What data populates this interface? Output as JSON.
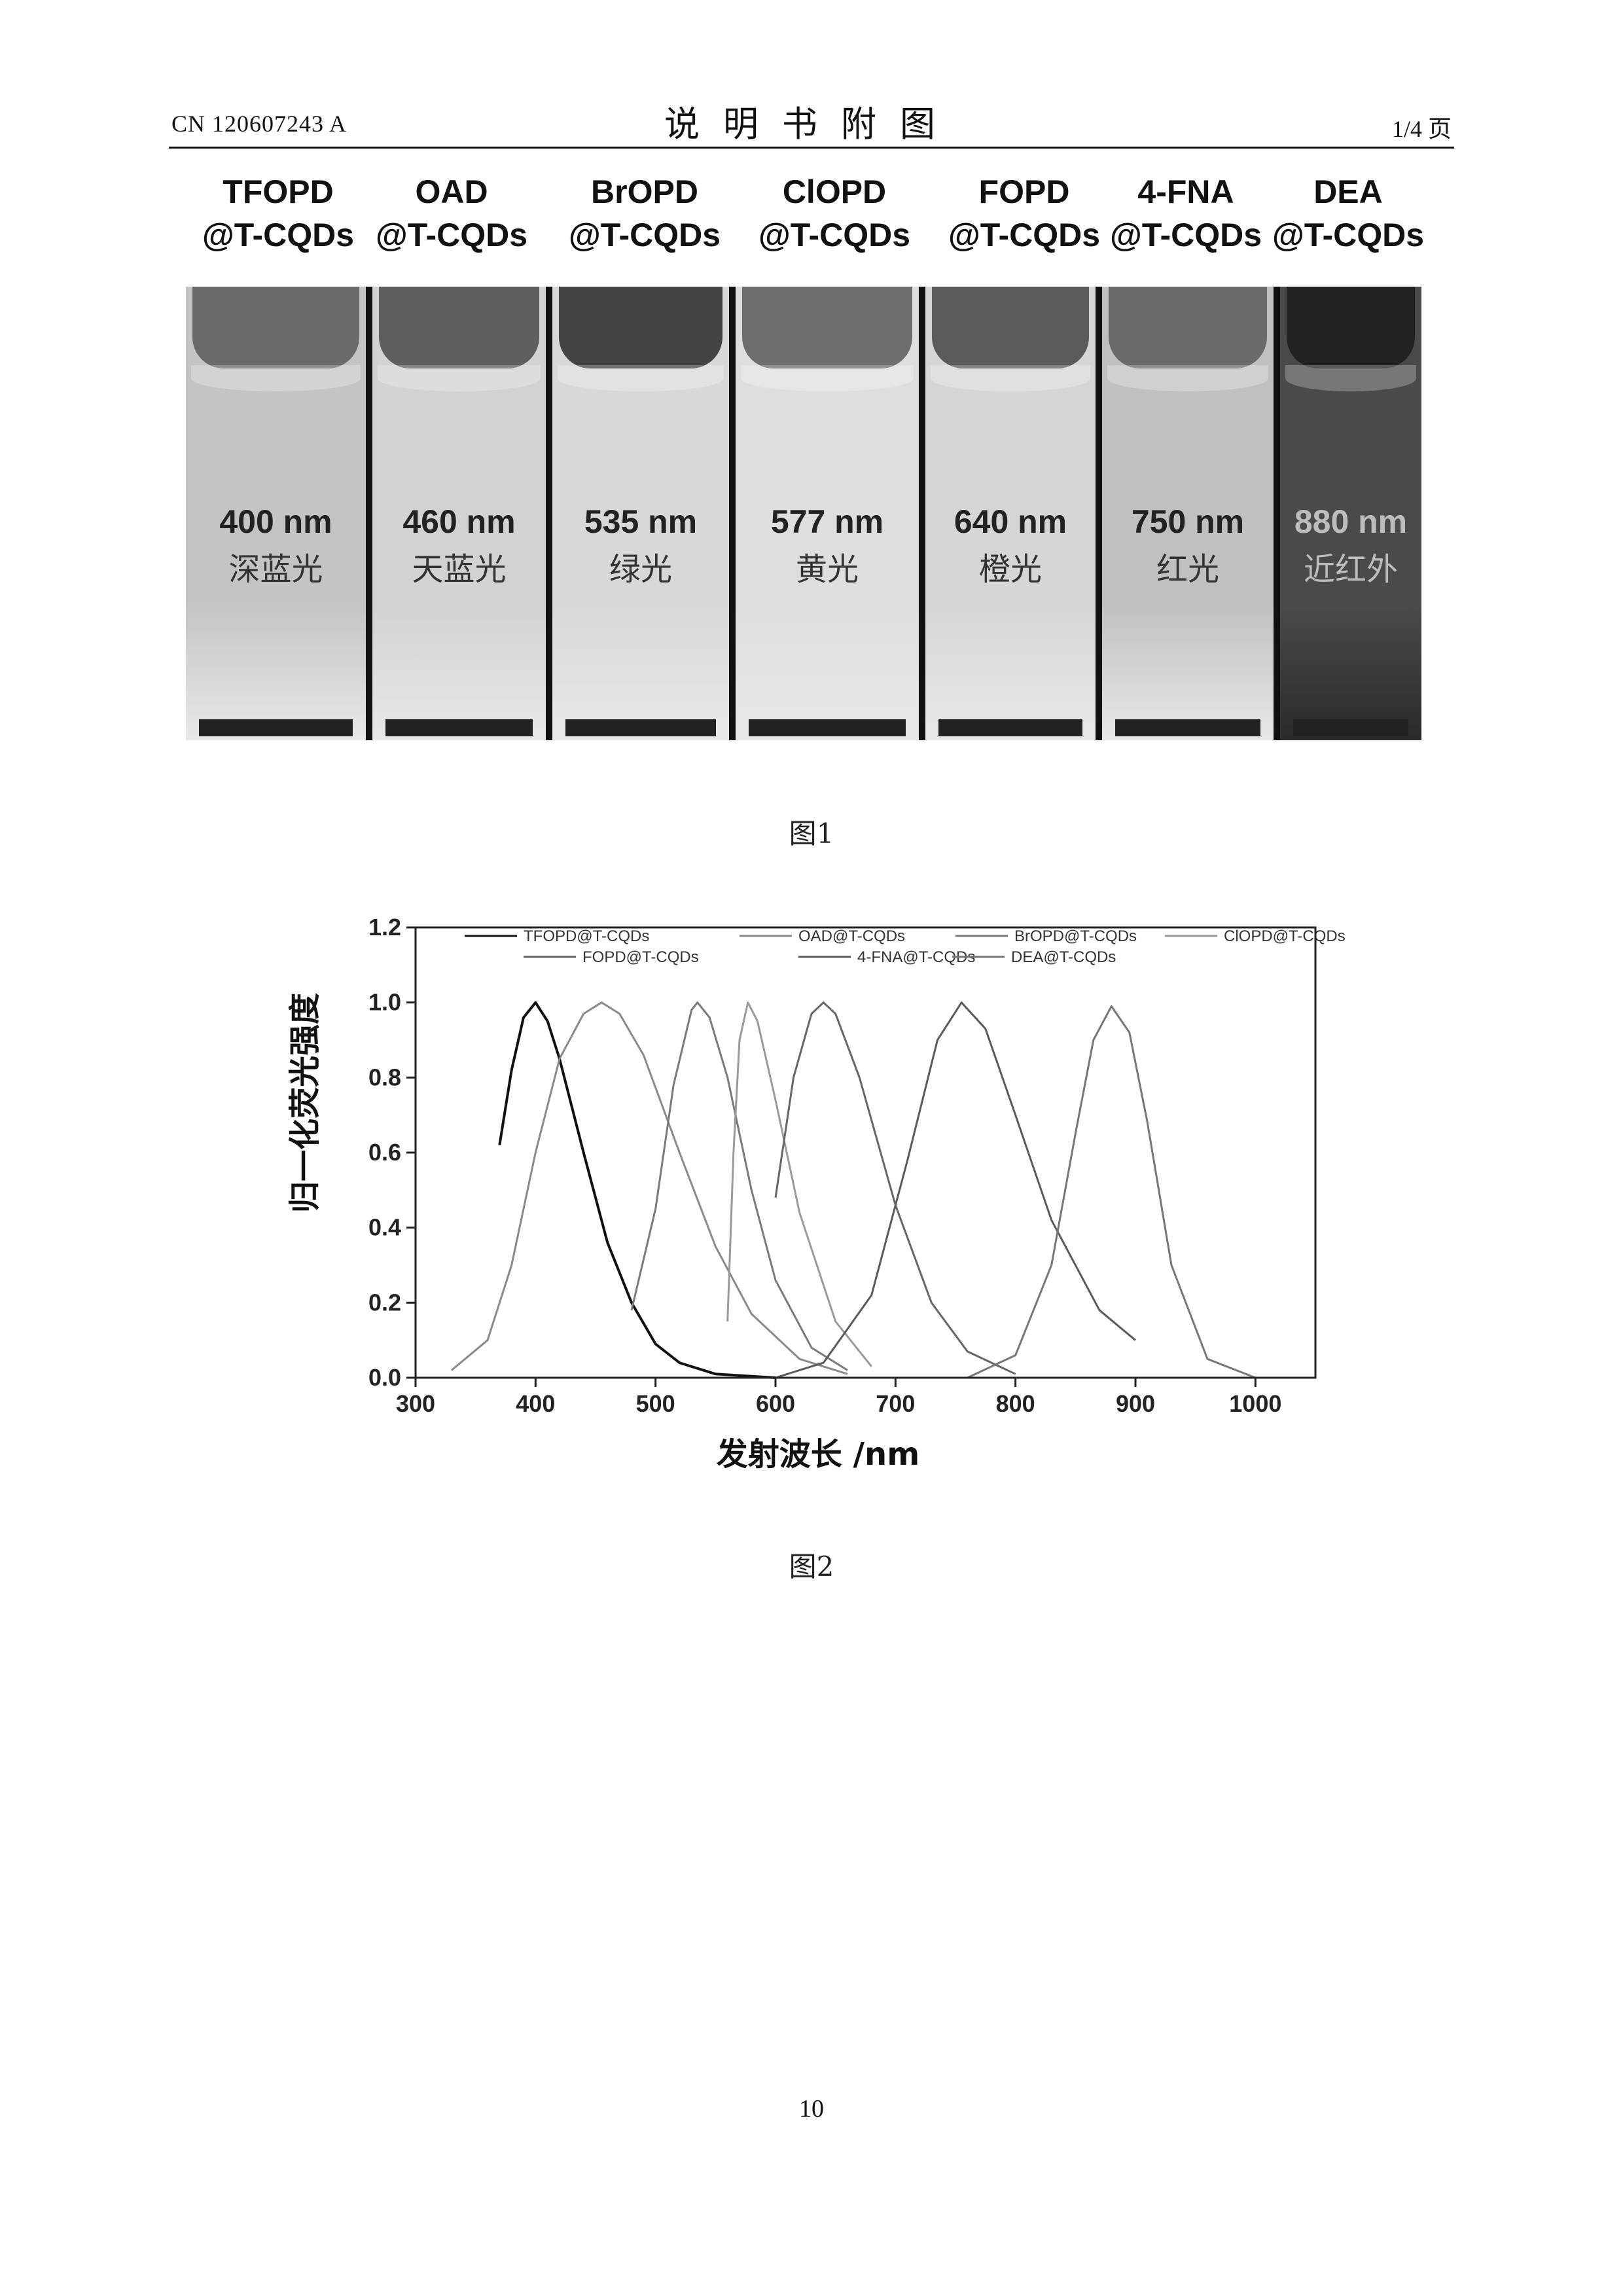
{
  "header": {
    "doc_number": "CN 120607243 A",
    "title": "说明书附图",
    "page_of": "1/4 页"
  },
  "figure1": {
    "caption": "图1",
    "samples": [
      {
        "line1": "TFOPD",
        "line2": "@T-CQDs",
        "wavelength": "400 nm",
        "color_name": "深蓝光"
      },
      {
        "line1": "OAD",
        "line2": "@T-CQDs",
        "wavelength": "460 nm",
        "color_name": "天蓝光"
      },
      {
        "line1": "BrOPD",
        "line2": "@T-CQDs",
        "wavelength": "535 nm",
        "color_name": "绿光"
      },
      {
        "line1": "ClOPD",
        "line2": "@T-CQDs",
        "wavelength": "577 nm",
        "color_name": "黄光"
      },
      {
        "line1": "FOPD",
        "line2": "@T-CQDs",
        "wavelength": "640 nm",
        "color_name": "橙光"
      },
      {
        "line1": "4-FNA",
        "line2": "@T-CQDs",
        "wavelength": "750 nm",
        "color_name": "红光"
      },
      {
        "line1": "DEA",
        "line2": "@T-CQDs",
        "wavelength": "880 nm",
        "color_name": "近红外"
      }
    ]
  },
  "figure2": {
    "caption": "图2"
  },
  "chart_data": {
    "type": "line",
    "xlabel": "发射波长 /nm",
    "ylabel": "归一化荧光强度",
    "xlim": [
      300,
      1050
    ],
    "ylim": [
      0,
      1.2
    ],
    "xticks": [
      300,
      400,
      500,
      600,
      700,
      800,
      900,
      1000
    ],
    "yticks": [
      0.0,
      0.2,
      0.4,
      0.6,
      0.8,
      1.0,
      1.2
    ],
    "grid": false,
    "legend_position": "top",
    "series": [
      {
        "name": "TFOPD@T-CQDs",
        "x": [
          370,
          380,
          390,
          400,
          410,
          420,
          440,
          460,
          480,
          500,
          520,
          550,
          600
        ],
        "y": [
          0.62,
          0.82,
          0.96,
          1.0,
          0.95,
          0.85,
          0.6,
          0.36,
          0.2,
          0.09,
          0.04,
          0.01,
          0.0
        ]
      },
      {
        "name": "OAD@T-CQDs",
        "x": [
          330,
          360,
          380,
          400,
          420,
          440,
          455,
          470,
          490,
          520,
          550,
          580,
          620,
          660
        ],
        "y": [
          0.02,
          0.1,
          0.3,
          0.6,
          0.85,
          0.97,
          1.0,
          0.97,
          0.86,
          0.6,
          0.35,
          0.17,
          0.05,
          0.01
        ]
      },
      {
        "name": "BrOPD@T-CQDs",
        "x": [
          480,
          500,
          515,
          530,
          535,
          545,
          560,
          580,
          600,
          630,
          660
        ],
        "y": [
          0.18,
          0.45,
          0.78,
          0.98,
          1.0,
          0.96,
          0.8,
          0.5,
          0.26,
          0.08,
          0.02
        ]
      },
      {
        "name": "ClOPD@T-CQDs",
        "x": [
          560,
          565,
          570,
          577,
          585,
          600,
          620,
          650,
          680
        ],
        "y": [
          0.15,
          0.6,
          0.9,
          1.0,
          0.95,
          0.74,
          0.44,
          0.15,
          0.03
        ]
      },
      {
        "name": "FOPD@T-CQDs",
        "x": [
          600,
          615,
          630,
          640,
          650,
          670,
          700,
          730,
          760,
          800
        ],
        "y": [
          0.48,
          0.8,
          0.97,
          1.0,
          0.97,
          0.8,
          0.46,
          0.2,
          0.07,
          0.01
        ]
      },
      {
        "name": "4-FNA@T-CQDs",
        "x": [
          600,
          640,
          680,
          710,
          735,
          755,
          775,
          800,
          830,
          870,
          900
        ],
        "y": [
          0.0,
          0.04,
          0.22,
          0.58,
          0.9,
          1.0,
          0.93,
          0.7,
          0.42,
          0.18,
          0.1
        ]
      },
      {
        "name": "DEA@T-CQDs",
        "x": [
          760,
          800,
          830,
          850,
          865,
          880,
          895,
          910,
          930,
          960,
          1000
        ],
        "y": [
          0.0,
          0.06,
          0.3,
          0.65,
          0.9,
          0.99,
          0.92,
          0.68,
          0.3,
          0.05,
          0.0
        ]
      }
    ]
  },
  "page_number": "10"
}
